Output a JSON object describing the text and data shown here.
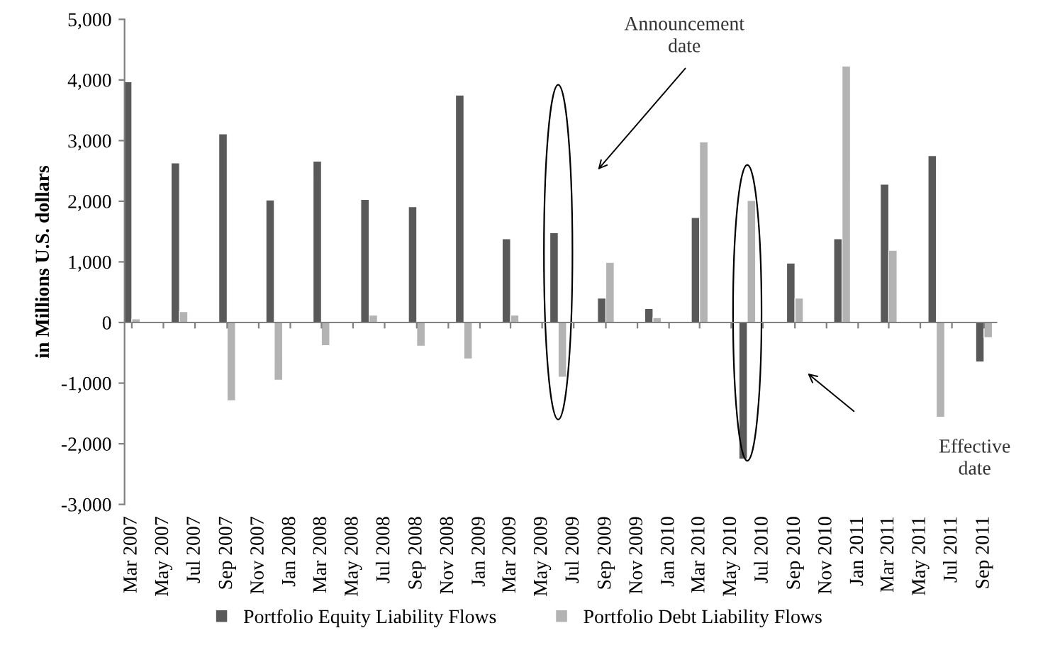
{
  "chart_data": {
    "type": "bar",
    "ylabel": "in Millions U.S. dollars",
    "x": [
      "2007-03",
      "2007-06",
      "2007-09",
      "2007-12",
      "2008-03",
      "2008-06",
      "2008-09",
      "2008-12",
      "2009-03",
      "2009-06",
      "2009-09",
      "2009-12",
      "2010-03",
      "2010-06",
      "2010-09",
      "2010-12",
      "2011-03",
      "2011-06",
      "2011-09"
    ],
    "series": [
      {
        "name": "Portfolio Equity Liability Flows",
        "color": "#595959",
        "values": [
          3970,
          2630,
          3110,
          2020,
          2660,
          2030,
          1910,
          3750,
          1380,
          1480,
          400,
          230,
          1730,
          -2250,
          980,
          1380,
          2280,
          2750,
          -650
        ]
      },
      {
        "name": "Portfolio Debt Liability Flows",
        "color": "#b3b3b3",
        "values": [
          60,
          180,
          -1290,
          -950,
          -380,
          120,
          -390,
          -600,
          120,
          -900,
          990,
          80,
          2980,
          2010,
          400,
          4230,
          1190,
          -1560,
          -250
        ]
      }
    ],
    "xlim": [
      "2007-02-15",
      "2011-09-25"
    ],
    "xticks": [
      {
        "value": "2007-03",
        "label": "Mar 2007"
      },
      {
        "value": "2007-05",
        "label": "May 2007"
      },
      {
        "value": "2007-07",
        "label": "Jul 2007"
      },
      {
        "value": "2007-09",
        "label": "Sep 2007"
      },
      {
        "value": "2007-11",
        "label": "Nov 2007"
      },
      {
        "value": "2008-01",
        "label": "Jan 2008"
      },
      {
        "value": "2008-03",
        "label": "Mar 2008"
      },
      {
        "value": "2008-05",
        "label": "May 2008"
      },
      {
        "value": "2008-07",
        "label": "Jul 2008"
      },
      {
        "value": "2008-09",
        "label": "Sep 2008"
      },
      {
        "value": "2008-11",
        "label": "Nov 2008"
      },
      {
        "value": "2009-01",
        "label": "Jan 2009"
      },
      {
        "value": "2009-03",
        "label": "Mar 2009"
      },
      {
        "value": "2009-05",
        "label": "May 2009"
      },
      {
        "value": "2009-07",
        "label": "Jul 2009"
      },
      {
        "value": "2009-09",
        "label": "Sep 2009"
      },
      {
        "value": "2009-11",
        "label": "Nov 2009"
      },
      {
        "value": "2010-01",
        "label": "Jan 2010"
      },
      {
        "value": "2010-03",
        "label": "Mar 2010"
      },
      {
        "value": "2010-05",
        "label": "May 2010"
      },
      {
        "value": "2010-07",
        "label": "Jul 2010"
      },
      {
        "value": "2010-09",
        "label": "Sep 2010"
      },
      {
        "value": "2010-11",
        "label": "Nov 2010"
      },
      {
        "value": "2011-01",
        "label": "Jan 2011"
      },
      {
        "value": "2011-03",
        "label": "Mar 2011"
      },
      {
        "value": "2011-05",
        "label": "May 2011"
      },
      {
        "value": "2011-07",
        "label": "Jul 2011"
      },
      {
        "value": "2011-09",
        "label": "Sep 2011"
      }
    ],
    "ylim": [
      -3000,
      5000
    ],
    "yticks": [
      {
        "value": -3000,
        "label": "-3,000"
      },
      {
        "value": -2000,
        "label": "-2,000"
      },
      {
        "value": -1000,
        "label": "-1,000"
      },
      {
        "value": 0,
        "label": "0"
      },
      {
        "value": 1000,
        "label": "1,000"
      },
      {
        "value": 2000,
        "label": "2,000"
      },
      {
        "value": 3000,
        "label": "3,000"
      },
      {
        "value": 4000,
        "label": "4,000"
      },
      {
        "value": 5000,
        "label": "5,000"
      }
    ],
    "annotations": [
      "Announcement date",
      "Effective date"
    ],
    "legend": "bottom"
  }
}
